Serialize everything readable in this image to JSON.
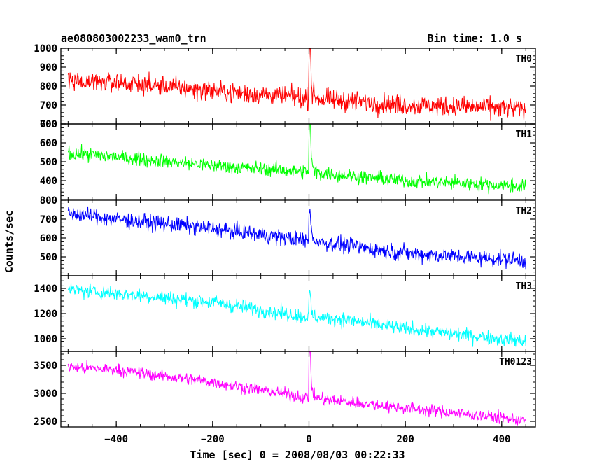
{
  "chart_data": {
    "type": "line",
    "title": "ae080803002233_wam0_trn",
    "subtitle": "Bin time: 1.0 s",
    "xlabel": "Time [sec] 0 = 2008/08/03 00:22:33",
    "ylabel": "Counts/sec",
    "xlim": [
      -515,
      470
    ],
    "x_ticks": [
      -400,
      -200,
      0,
      200,
      400
    ],
    "x_data_range": [
      -500,
      450
    ],
    "bin": 1.0,
    "panels": [
      {
        "name": "TH0",
        "color": "#ff0000",
        "ylim": [
          600,
          1000
        ],
        "y_ticks": [
          600,
          700,
          800,
          900,
          1000
        ],
        "trend_x": [
          -500,
          -400,
          -200,
          0,
          200,
          450
        ],
        "trend_y": [
          830,
          820,
          775,
          735,
          700,
          680
        ],
        "noise": 38,
        "burst_peak": 1000
      },
      {
        "name": "TH1",
        "color": "#00ff00",
        "ylim": [
          300,
          700
        ],
        "y_ticks": [
          400,
          500,
          600,
          700
        ],
        "trend_x": [
          -500,
          -400,
          -200,
          0,
          200,
          450
        ],
        "trend_y": [
          545,
          525,
          480,
          445,
          400,
          370
        ],
        "noise": 26,
        "burst_peak": 680
      },
      {
        "name": "TH2",
        "color": "#0000ff",
        "ylim": [
          400,
          800
        ],
        "y_ticks": [
          500,
          600,
          700,
          800
        ],
        "trend_x": [
          -500,
          -400,
          -200,
          0,
          200,
          450
        ],
        "trend_y": [
          730,
          700,
          650,
          585,
          520,
          480
        ],
        "noise": 30,
        "burst_peak": 735
      },
      {
        "name": "TH3",
        "color": "#00ffff",
        "ylim": [
          900,
          1500
        ],
        "y_ticks": [
          1000,
          1200,
          1400
        ],
        "trend_x": [
          -500,
          -400,
          -200,
          0,
          60,
          200,
          450
        ],
        "trend_y": [
          1390,
          1360,
          1290,
          1170,
          1160,
          1080,
          980
        ],
        "noise": 40,
        "burst_peak": 1330
      },
      {
        "name": "TH0123",
        "color": "#ff00ff",
        "ylim": [
          2400,
          3750
        ],
        "y_ticks": [
          2500,
          3000,
          3500
        ],
        "trend_x": [
          -500,
          -400,
          -200,
          0,
          200,
          450
        ],
        "trend_y": [
          3470,
          3420,
          3200,
          2920,
          2740,
          2520
        ],
        "noise": 75,
        "burst_peak": 3750
      }
    ]
  }
}
